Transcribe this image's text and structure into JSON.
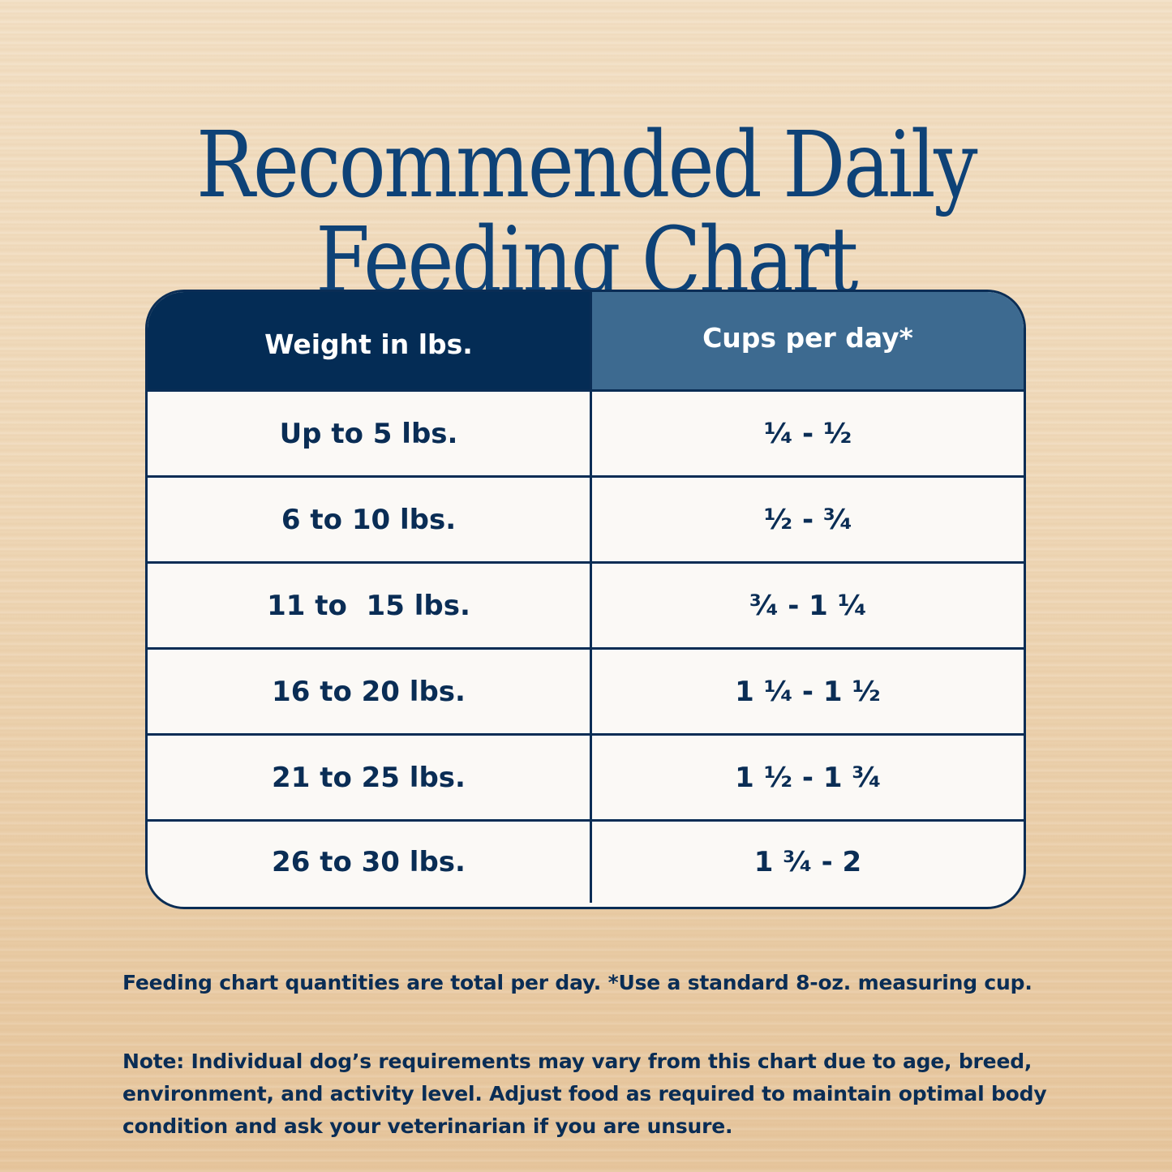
{
  "title": {
    "line1": "Recommended Daily",
    "line2": "Feeding Chart"
  },
  "colors": {
    "title": "#0e4277",
    "header_col1": "#042c55",
    "header_col2": "#3d6a90",
    "text": "#0a2d55",
    "table_bg": "#fbf9f6",
    "background": "#efd8b8"
  },
  "table": {
    "headers": [
      "Weight in lbs.",
      "Cups per day*"
    ],
    "rows": [
      {
        "weight": "Up to 5 lbs.",
        "cups": "¹⁄₄ - ¹⁄₂"
      },
      {
        "weight": "6 to 10 lbs.",
        "cups": "¹⁄₂ - ³⁄₄"
      },
      {
        "weight": "11 to  15 lbs.",
        "cups": "³⁄₄ - 1 ¹⁄₄"
      },
      {
        "weight": "16 to 20 lbs.",
        "cups": "1 ¹⁄₄ - 1 ¹⁄₂"
      },
      {
        "weight": "21 to 25 lbs.",
        "cups": "1 ¹⁄₂ - 1 ³⁄₄"
      },
      {
        "weight": "26 to 30 lbs.",
        "cups": "1 ³⁄₄ - 2"
      }
    ]
  },
  "chart_data": {
    "type": "table",
    "title": "Recommended Daily Feeding Chart",
    "columns": [
      "Weight in lbs.",
      "Cups per day*"
    ],
    "rows": [
      [
        "Up to 5 lbs.",
        "1/4 - 1/2"
      ],
      [
        "6 to 10 lbs.",
        "1/2 - 3/4"
      ],
      [
        "11 to 15 lbs.",
        "3/4 - 1 1/4"
      ],
      [
        "16 to 20 lbs.",
        "1 1/4 - 1 1/2"
      ],
      [
        "21 to 25 lbs.",
        "1 1/2 - 1 3/4"
      ],
      [
        "26 to 30 lbs.",
        "1 3/4 - 2"
      ]
    ],
    "numeric": {
      "weight_ranges_lbs": [
        [
          0,
          5
        ],
        [
          6,
          10
        ],
        [
          11,
          15
        ],
        [
          16,
          20
        ],
        [
          21,
          25
        ],
        [
          26,
          30
        ]
      ],
      "cups_per_day": [
        [
          0.25,
          0.5
        ],
        [
          0.5,
          0.75
        ],
        [
          0.75,
          1.25
        ],
        [
          1.25,
          1.5
        ],
        [
          1.5,
          1.75
        ],
        [
          1.75,
          2
        ]
      ]
    }
  },
  "footnote": "Feeding chart quantities are total per day. *Use a standard 8-oz. measuring cup.",
  "note": {
    "label": "Note:",
    "text": " Individual dog’s requirements may vary from this chart due to age, breed, environment, and activity level. Adjust food as required to maintain optimal body condition and ask your veterinarian if you are unsure."
  }
}
